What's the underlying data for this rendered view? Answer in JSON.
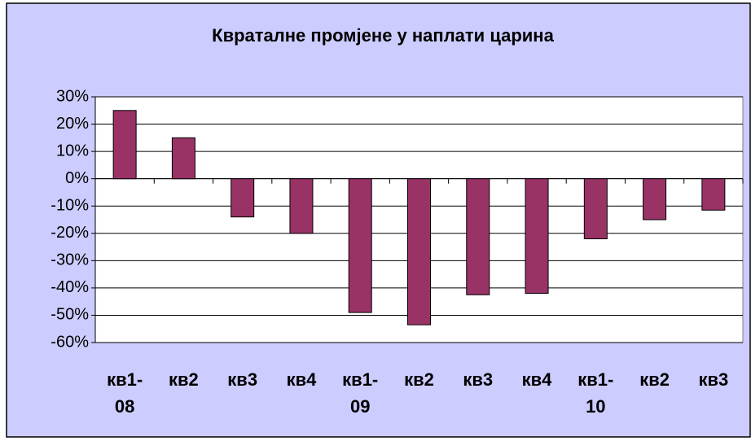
{
  "chart_data": {
    "type": "bar",
    "title": "Квраталне промјене у наплати царина",
    "categories": [
      "кв1-08",
      "кв2",
      "кв3",
      "кв4",
      "кв1-09",
      "кв2",
      "кв3",
      "кв4",
      "кв1-10",
      "кв2",
      "кв3"
    ],
    "values": [
      25,
      15,
      -14,
      -20,
      -49,
      -53.5,
      -42.5,
      -42,
      -22,
      -15,
      -11.5
    ],
    "color": "#993366",
    "ylim": [
      -60,
      30
    ],
    "yticks": [
      {
        "value": -60,
        "label": "-60%"
      },
      {
        "value": -50,
        "label": "-50%"
      },
      {
        "value": -40,
        "label": "-40%"
      },
      {
        "value": -30,
        "label": "-30%"
      },
      {
        "value": -20,
        "label": "-20%"
      },
      {
        "value": -10,
        "label": "-10%"
      },
      {
        "value": 0,
        "label": "0%"
      },
      {
        "value": 10,
        "label": "10%"
      },
      {
        "value": 20,
        "label": "20%"
      },
      {
        "value": 30,
        "label": "30%"
      }
    ],
    "grid": true
  }
}
